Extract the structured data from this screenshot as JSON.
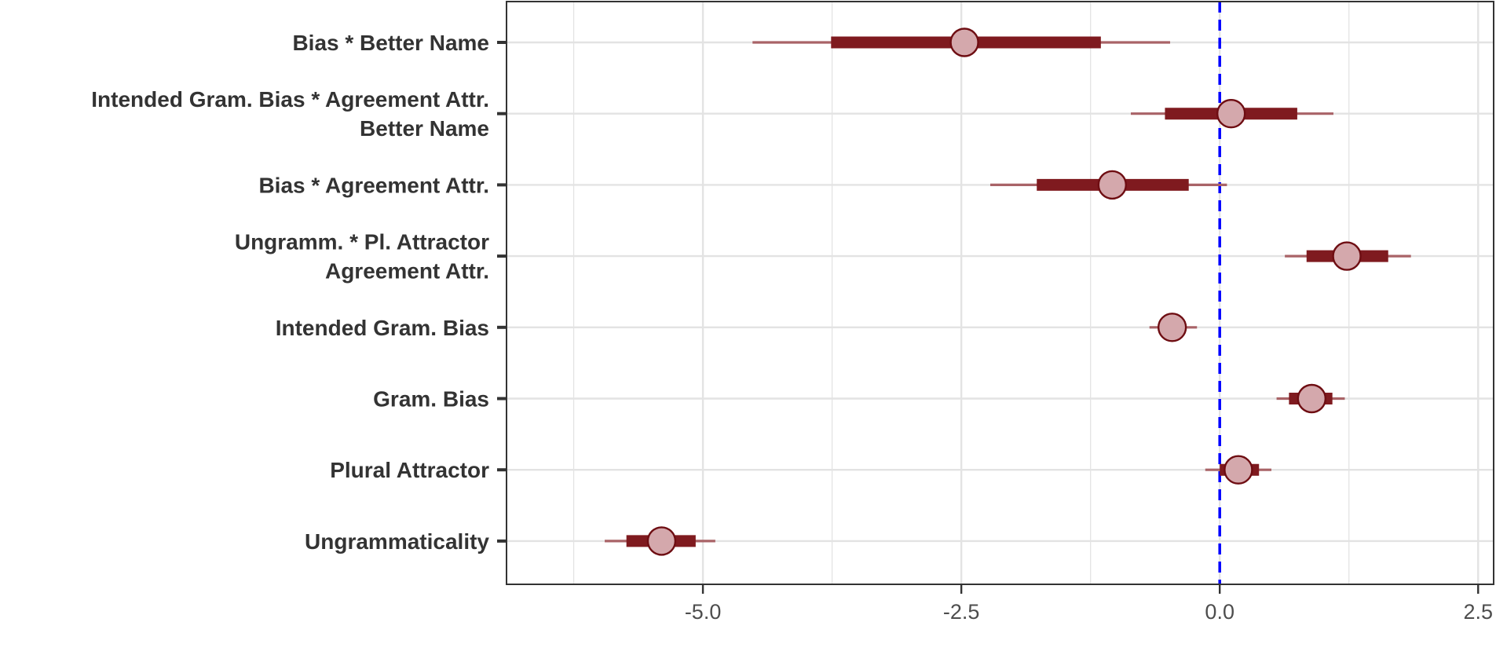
{
  "chart_data": {
    "type": "forest",
    "categories": [
      "Bias * Better Name",
      "Intended Gram. Bias * Agreement Attr.\nBetter Name",
      "Bias * Agreement Attr.",
      "Ungramm. * Pl. Attractor\nAgreement Attr.",
      "Intended Gram. Bias",
      "Gram. Bias",
      "Plural Attractor",
      "Ungrammaticality"
    ],
    "estimates": [
      {
        "estimate": -2.47,
        "inner": [
          -3.76,
          -1.15
        ],
        "outer": [
          -4.52,
          -0.48
        ]
      },
      {
        "estimate": 0.11,
        "inner": [
          -0.53,
          0.75
        ],
        "outer": [
          -0.86,
          1.1
        ]
      },
      {
        "estimate": -1.04,
        "inner": [
          -1.77,
          -0.3
        ],
        "outer": [
          -2.22,
          0.07
        ]
      },
      {
        "estimate": 1.23,
        "inner": [
          0.84,
          1.63
        ],
        "outer": [
          0.63,
          1.85
        ]
      },
      {
        "estimate": -0.46,
        "inner": [
          -0.57,
          -0.33
        ],
        "outer": [
          -0.68,
          -0.22
        ]
      },
      {
        "estimate": 0.89,
        "inner": [
          0.67,
          1.09
        ],
        "outer": [
          0.55,
          1.21
        ]
      },
      {
        "estimate": 0.18,
        "inner": [
          0.0,
          0.38
        ],
        "outer": [
          -0.14,
          0.5
        ]
      },
      {
        "estimate": -5.4,
        "inner": [
          -5.74,
          -5.07
        ],
        "outer": [
          -5.95,
          -4.88
        ]
      }
    ],
    "xlim": [
      -6.9,
      2.65
    ],
    "x_ticks": [
      -5.0,
      -2.5,
      0.0,
      2.5
    ],
    "x_tick_labels": [
      "-5.0",
      "-2.5",
      "0.0",
      "2.5"
    ],
    "reference_line": {
      "x": 0,
      "style": "dashed",
      "color": "#0000ff"
    },
    "grid": true,
    "colors": {
      "inner_interval": "#7f1a1f",
      "outer_interval": "#a96367",
      "point_fill": "#d4a8ac",
      "point_stroke": "#6e0d12",
      "gridline": "#e3e3e3",
      "axis": "#333333"
    }
  }
}
